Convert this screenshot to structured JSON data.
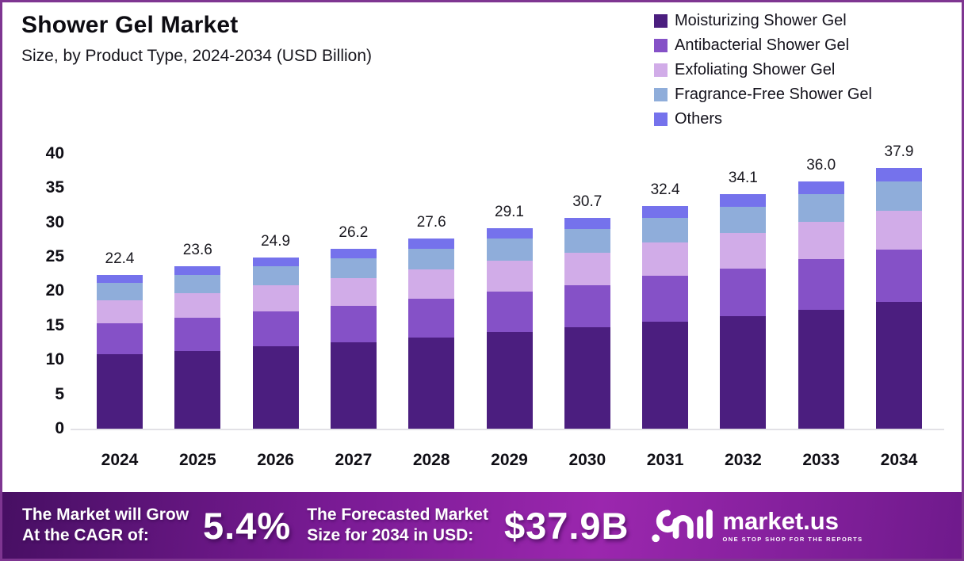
{
  "header": {
    "title": "Shower Gel Market",
    "subtitle": "Size, by Product Type, 2024-2034 (USD Billion)"
  },
  "legend": {
    "position": "top-right",
    "items": [
      {
        "label": "Moisturizing Shower Gel",
        "color": "#4b1e7f"
      },
      {
        "label": "Antibacterial Shower Gel",
        "color": "#8551c7"
      },
      {
        "label": "Exfoliating Shower Gel",
        "color": "#d1ace8"
      },
      {
        "label": "Fragrance-Free Shower Gel",
        "color": "#8fadda"
      },
      {
        "label": "Others",
        "color": "#7572ec"
      }
    ]
  },
  "chart_data": {
    "type": "bar",
    "stacked": true,
    "title": "Shower Gel Market Size, by Product Type, 2024-2034 (USD Billion)",
    "xlabel": "",
    "ylabel": "USD Billion",
    "ylim": [
      0,
      40
    ],
    "yticks": [
      0,
      5,
      10,
      15,
      20,
      25,
      30,
      35,
      40
    ],
    "grid": false,
    "legend_position": "top-right",
    "categories": [
      "2024",
      "2025",
      "2026",
      "2027",
      "2028",
      "2029",
      "2030",
      "2031",
      "2032",
      "2033",
      "2034"
    ],
    "series": [
      {
        "name": "Moisturizing Shower Gel",
        "color": "#4b1e7f",
        "values": [
          10.8,
          11.3,
          12.0,
          12.6,
          13.3,
          14.0,
          14.7,
          15.6,
          16.4,
          17.3,
          18.4
        ]
      },
      {
        "name": "Antibacterial Shower Gel",
        "color": "#8551c7",
        "values": [
          4.5,
          4.8,
          5.1,
          5.3,
          5.6,
          5.9,
          6.2,
          6.6,
          6.9,
          7.3,
          7.6
        ]
      },
      {
        "name": "Exfoliating Shower Gel",
        "color": "#d1ace8",
        "values": [
          3.4,
          3.6,
          3.8,
          4.0,
          4.2,
          4.5,
          4.7,
          4.9,
          5.2,
          5.5,
          5.7
        ]
      },
      {
        "name": "Fragrance-Free Shower Gel",
        "color": "#8fadda",
        "values": [
          2.5,
          2.6,
          2.7,
          2.9,
          3.0,
          3.2,
          3.4,
          3.6,
          3.8,
          4.0,
          4.3
        ]
      },
      {
        "name": "Others",
        "color": "#7572ec",
        "values": [
          1.2,
          1.3,
          1.3,
          1.4,
          1.5,
          1.5,
          1.7,
          1.7,
          1.8,
          1.9,
          1.9
        ]
      }
    ],
    "totals_labels": [
      "22.4",
      "23.6",
      "24.9",
      "26.2",
      "27.6",
      "29.1",
      "30.7",
      "32.4",
      "34.1",
      "36.0",
      "37.9"
    ]
  },
  "banner": {
    "cagr_line1": "The Market will Grow",
    "cagr_line2": "At the CAGR of:",
    "cagr_value": "5.4%",
    "forecast_line1": "The Forecasted Market",
    "forecast_line2": "Size for 2034 in USD:",
    "forecast_value": "$37.9B",
    "brand_name": "market.us",
    "brand_tagline": "ONE STOP SHOP FOR THE REPORTS"
  },
  "colors": {
    "frame_border": "#7e3591",
    "banner_gradient_start": "#470f63",
    "banner_gradient_mid": "#9b27ae",
    "banner_gradient_end": "#6f1a8c",
    "baseline": "#e2e1e6",
    "text_dark": "#0f0e15"
  }
}
